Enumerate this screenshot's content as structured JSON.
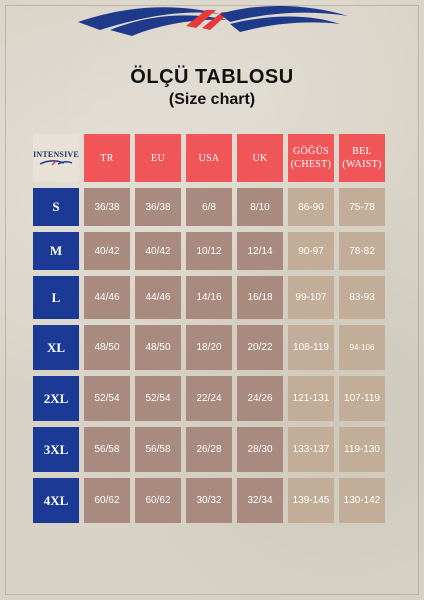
{
  "header": {
    "title": "ÖLÇÜ TABLOSU",
    "subtitle": "(Size chart)"
  },
  "brand": {
    "name": "INTENSIVE",
    "logo_icon": "brand-wave-logo-icon",
    "colors": {
      "navy": "#1f3a8a",
      "red": "#e63a3a"
    }
  },
  "table": {
    "columns": [
      "TR",
      "EU",
      "USA",
      "UK",
      "GÖĞÜS (CHEST)",
      "BEL (WAIST)"
    ],
    "column_colors": {
      "header": "#f05658",
      "size": "#1a3a96",
      "number": "#a98a7f",
      "measure": "#c2ad99"
    },
    "rows": [
      {
        "size": "S",
        "tr": "36/38",
        "eu": "36/38",
        "usa": "6/8",
        "uk": "8/10",
        "chest": "86-90",
        "waist": "75-78"
      },
      {
        "size": "M",
        "tr": "40/42",
        "eu": "40/42",
        "usa": "10/12",
        "uk": "12/14",
        "chest": "90-97",
        "waist": "78-82"
      },
      {
        "size": "L",
        "tr": "44/46",
        "eu": "44/46",
        "usa": "14/16",
        "uk": "16/18",
        "chest": "99-107",
        "waist": "83-93"
      },
      {
        "size": "XL",
        "tr": "48/50",
        "eu": "48/50",
        "usa": "18/20",
        "uk": "20/22",
        "chest": "108-119",
        "waist": "94-106"
      },
      {
        "size": "2XL",
        "tr": "52/54",
        "eu": "52/54",
        "usa": "22/24",
        "uk": "24/26",
        "chest": "121-131",
        "waist": "107-119"
      },
      {
        "size": "3XL",
        "tr": "56/58",
        "eu": "56/58",
        "usa": "26/28",
        "uk": "28/30",
        "chest": "133-137",
        "waist": "119-130"
      },
      {
        "size": "4XL",
        "tr": "60/62",
        "eu": "60/62",
        "usa": "30/32",
        "uk": "32/34",
        "chest": "139-145",
        "waist": "130-142"
      }
    ]
  }
}
